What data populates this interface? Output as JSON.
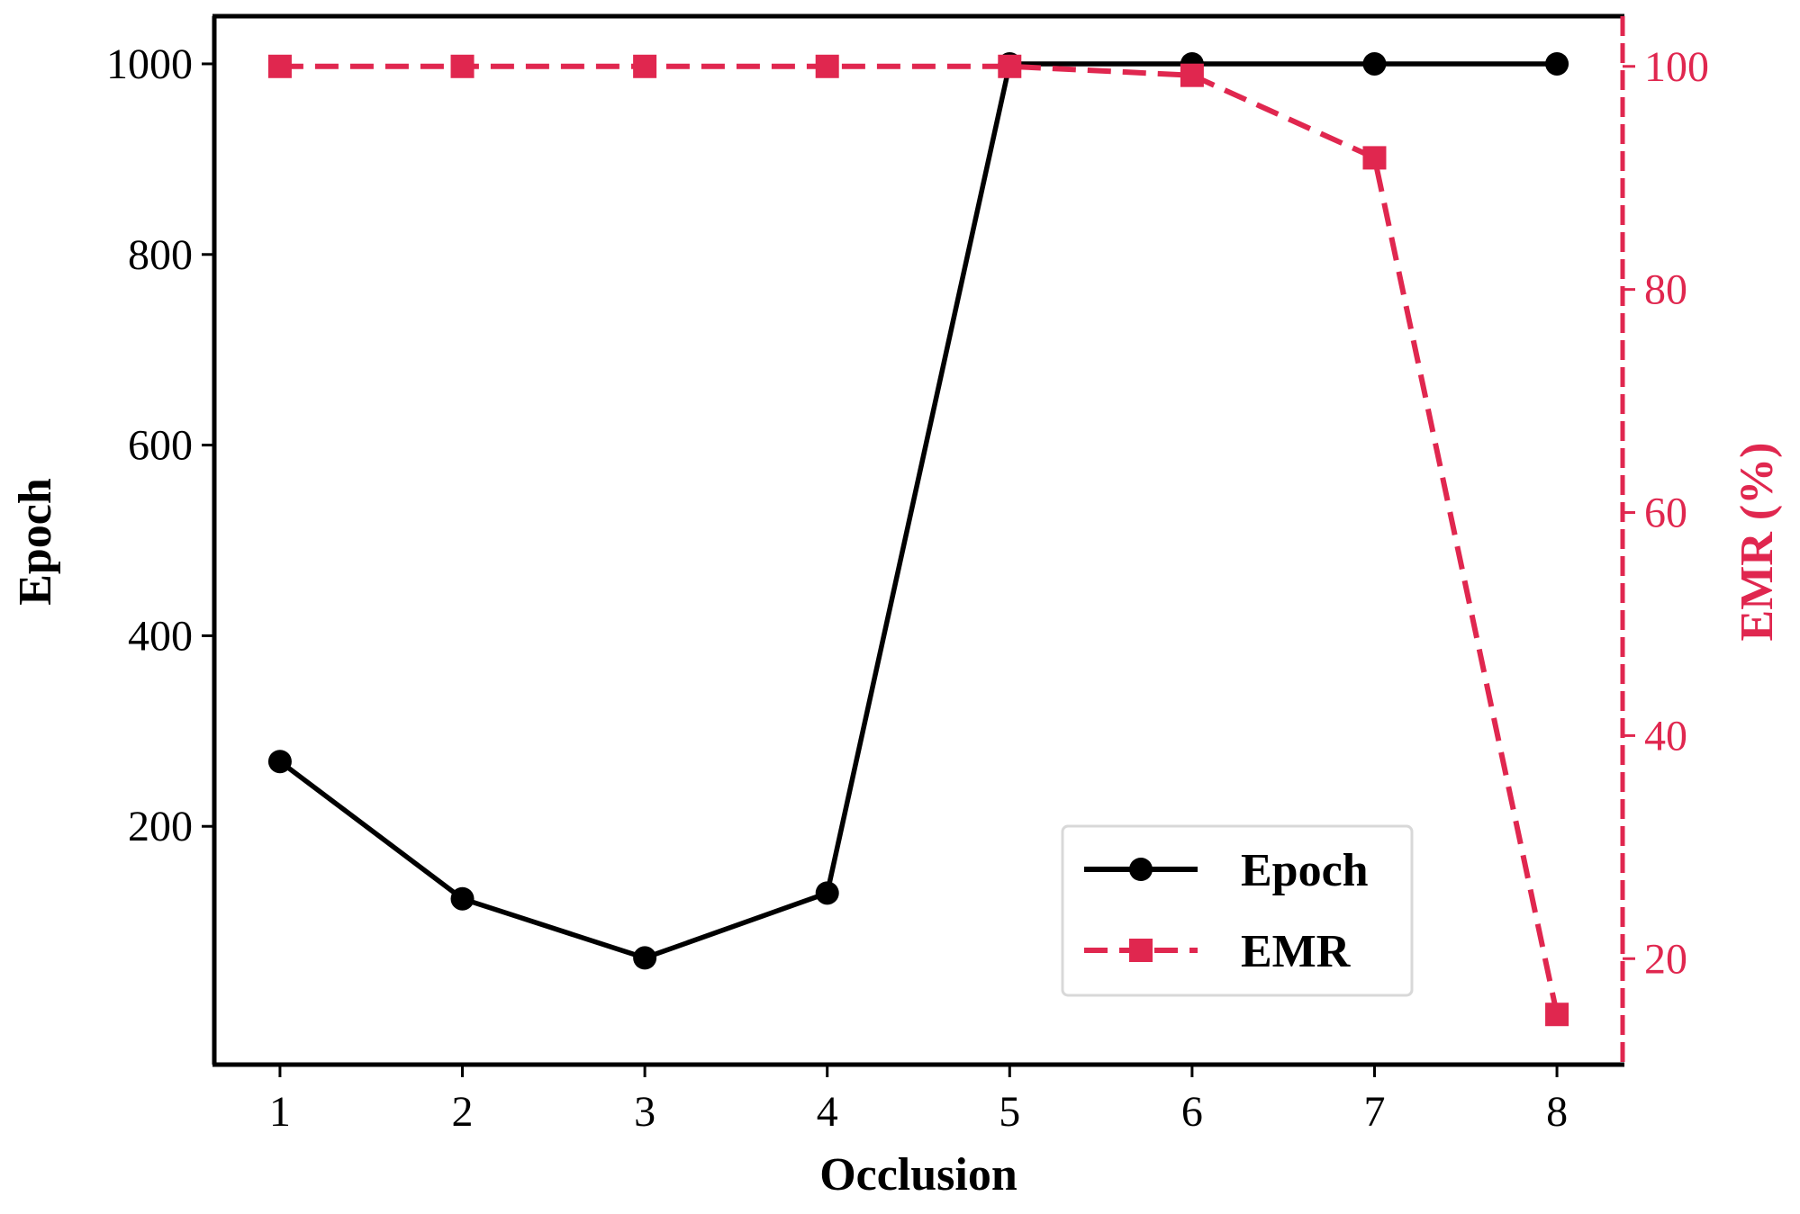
{
  "chart_data": {
    "type": "line",
    "xlabel": "Occlusion",
    "ylabel_left": "Epoch",
    "ylabel_right": "EMR (%)",
    "x": [
      1,
      2,
      3,
      4,
      5,
      6,
      7,
      8
    ],
    "xticks": [
      "1",
      "2",
      "3",
      "4",
      "5",
      "6",
      "7",
      "8"
    ],
    "xlim": [
      0.64,
      8.36
    ],
    "ylim_left": [
      -50,
      1050
    ],
    "yticks_left": [
      "200",
      "400",
      "600",
      "800",
      "1000"
    ],
    "ylim_right": [
      10.5,
      104.5
    ],
    "yticks_right": [
      "20",
      "40",
      "60",
      "80",
      "100"
    ],
    "grid": false,
    "legend_position": "lower-right",
    "series": [
      {
        "name": "Epoch",
        "axis": "left",
        "color": "#000000",
        "line_style": "solid",
        "marker": "circle",
        "values": [
          268,
          124,
          62,
          130,
          1000,
          1000,
          1000,
          1000
        ]
      },
      {
        "name": "EMR",
        "axis": "right",
        "color": "#e0274f",
        "line_style": "dashed",
        "marker": "square",
        "values": [
          100,
          100,
          100,
          100,
          100,
          99.2,
          91.8,
          15
        ]
      }
    ]
  }
}
